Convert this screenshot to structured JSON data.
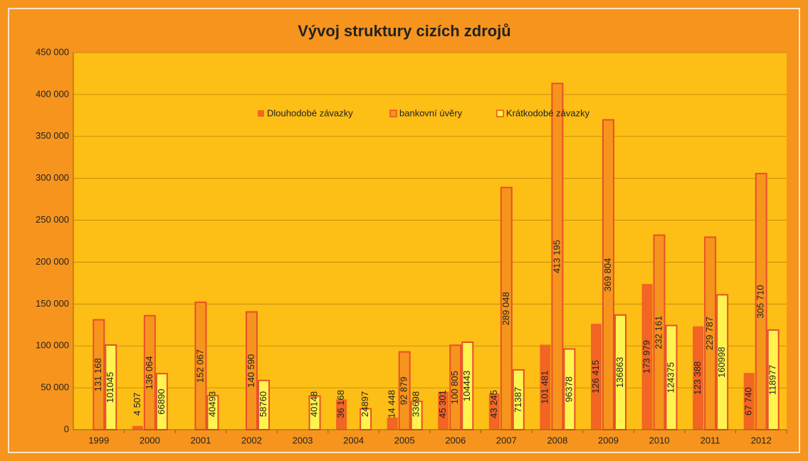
{
  "chart_data": {
    "type": "bar",
    "title": "Vývoj struktury cizích zdrojů",
    "categories": [
      "1999",
      "2000",
      "2001",
      "2002",
      "2003",
      "2004",
      "2005",
      "2006",
      "2007",
      "2008",
      "2009",
      "2010",
      "2011",
      "2012"
    ],
    "series": [
      {
        "name": "Dlouhodobé závazky",
        "color": "#F26522",
        "values": [
          null,
          4507,
          null,
          null,
          null,
          36168,
          14448,
          45301,
          43245,
          101481,
          126415,
          173979,
          123388,
          67740
        ],
        "value_labels": [
          null,
          "4 507",
          null,
          null,
          null,
          "36 168",
          "14 448",
          "45 301",
          "43 245",
          "101 481",
          "126 415",
          "173 979",
          "123 388",
          "67 740"
        ]
      },
      {
        "name": "bankovní úvěry",
        "color": "#F7941D",
        "values": [
          131168,
          136064,
          152067,
          140590,
          null,
          null,
          92879,
          100805,
          289048,
          413195,
          369804,
          232161,
          229787,
          305710
        ],
        "value_labels": [
          "131 168",
          "136 064",
          "152 067",
          "140 590",
          null,
          null,
          "92 879",
          "100 805",
          "289 048",
          "413 195",
          "369 804",
          "232 161",
          "229 787",
          "305 710"
        ]
      },
      {
        "name": "Krátkodobé závazky",
        "color": "#FFF44F",
        "values": [
          101045,
          66890,
          40493,
          58760,
          40148,
          24897,
          33698,
          104443,
          71387,
          96378,
          136863,
          124375,
          160998,
          118977
        ]
      }
    ],
    "ylim": [
      0,
      450000
    ],
    "yticks": [
      0,
      {
        "value": 50000,
        "label": "50 000"
      },
      {
        "value": 100000,
        "label": "100 000"
      },
      {
        "value": 150000,
        "label": "150 000"
      },
      {
        "value": 200000,
        "label": "200 000"
      },
      {
        "value": 250000,
        "label": "250 000"
      },
      {
        "value": 300000,
        "label": "300 000"
      },
      {
        "value": 350000,
        "label": "350 000"
      },
      {
        "value": 400000,
        "label": "400 000"
      },
      {
        "value": 450000,
        "label": "450 000"
      }
    ],
    "grid": true,
    "legend": "top"
  }
}
